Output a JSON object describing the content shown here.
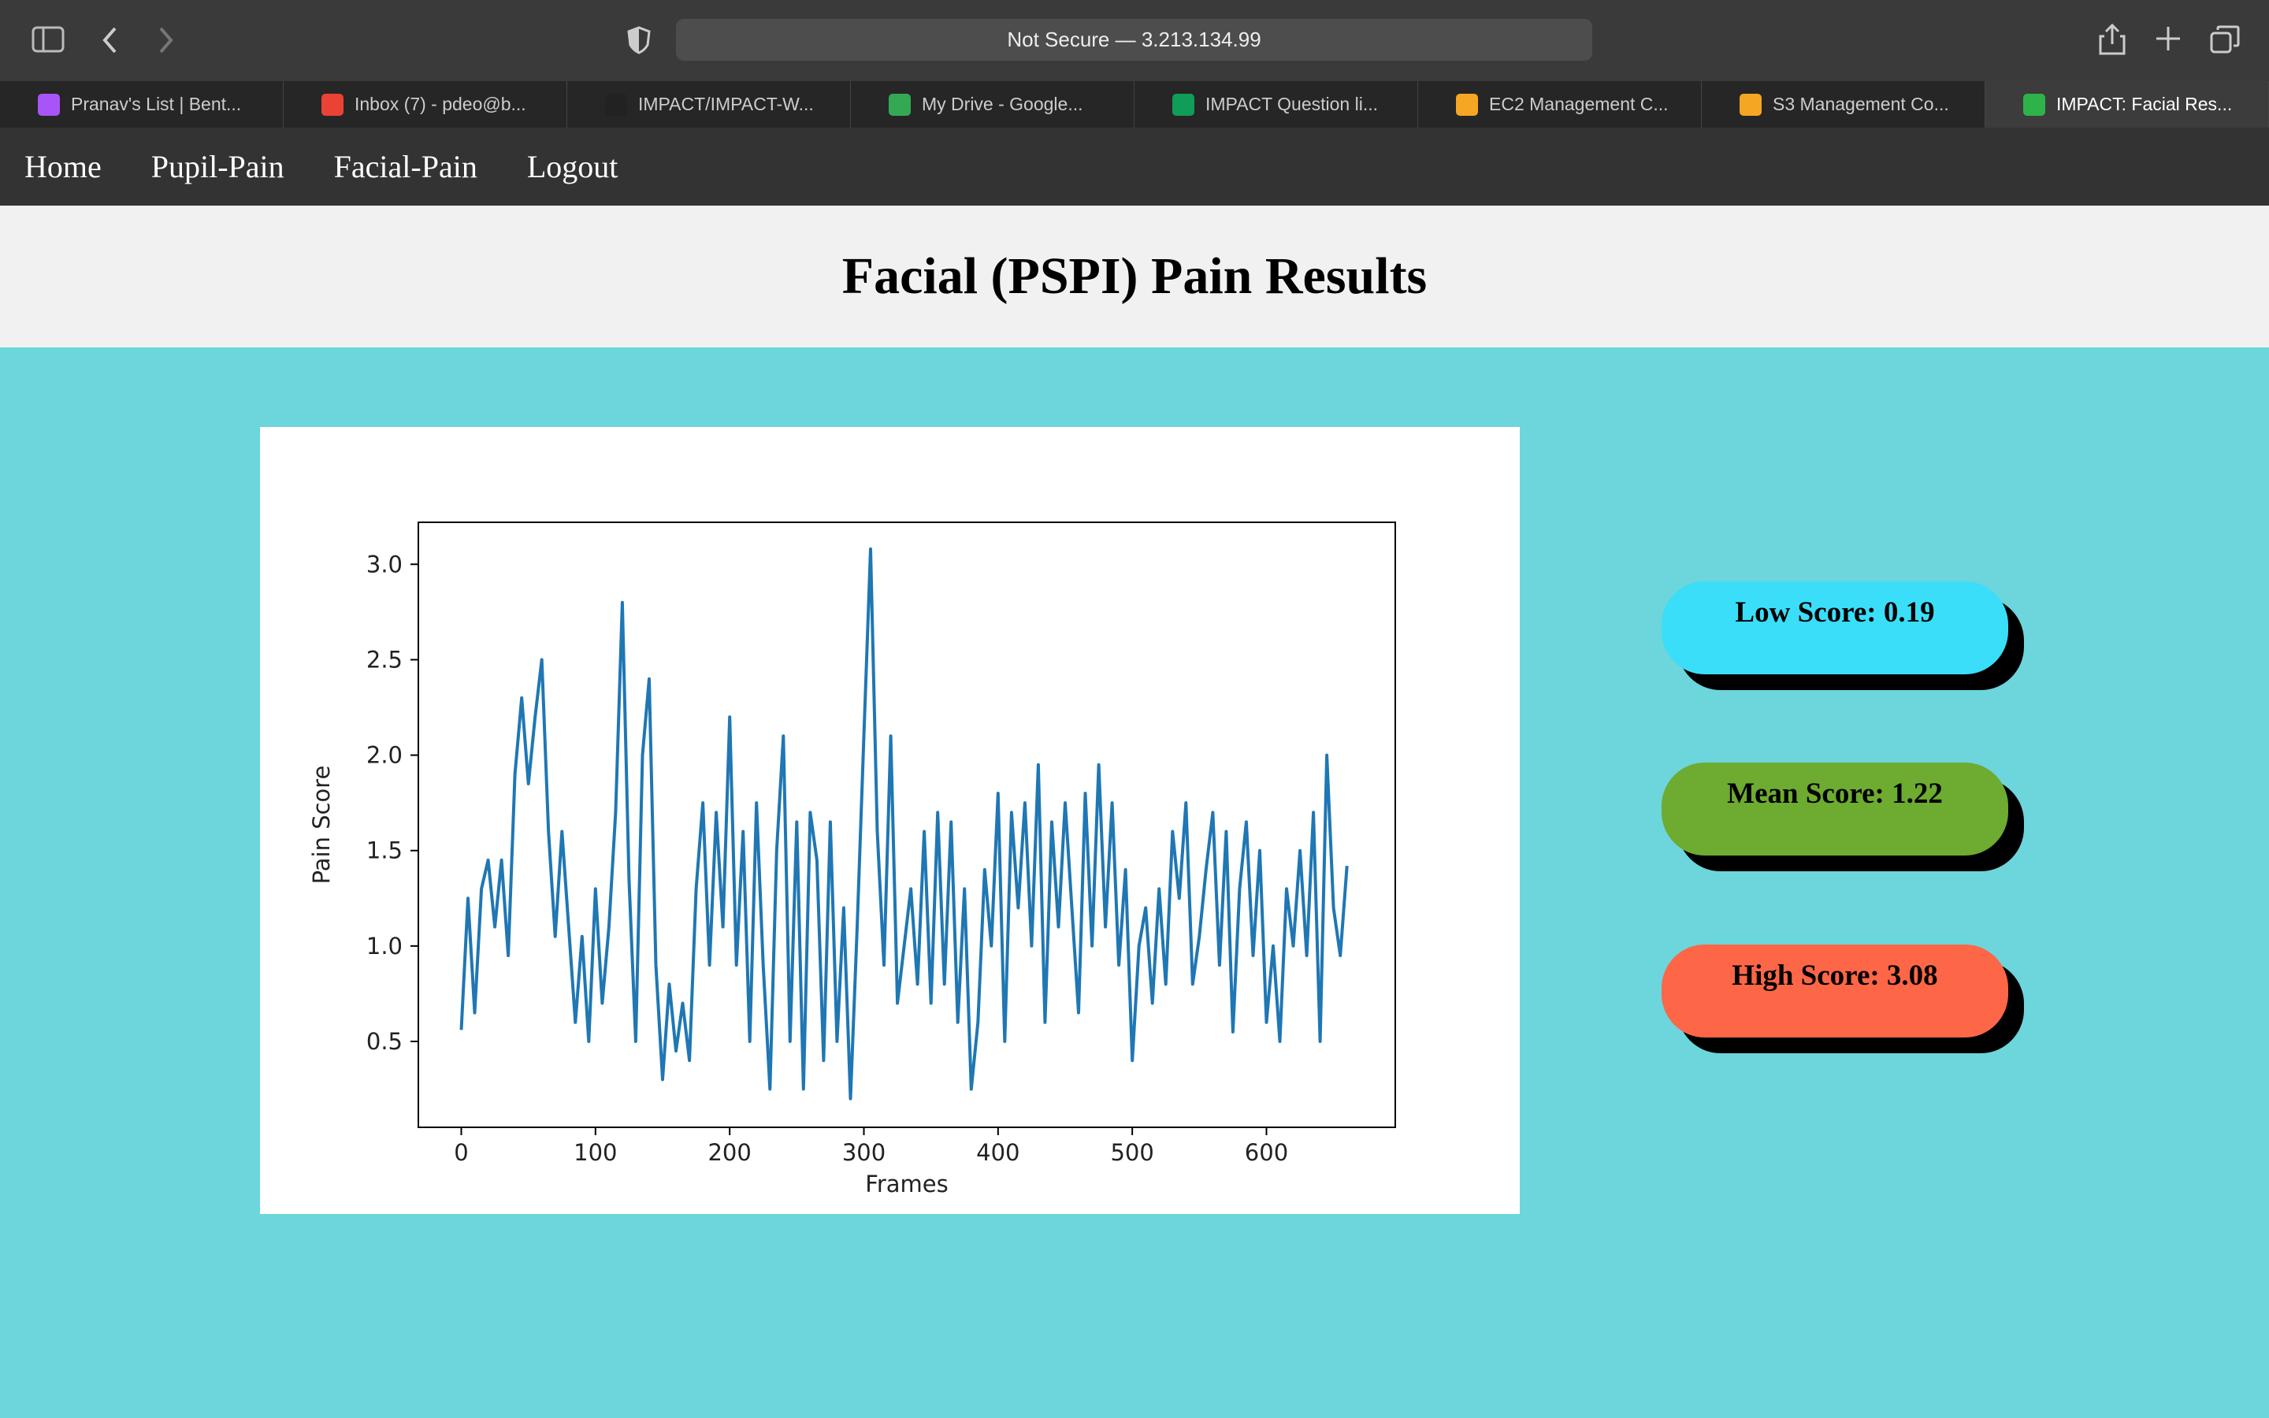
{
  "browser": {
    "url": "Not Secure — 3.213.134.99",
    "tabs": [
      "Pranav's List | Bent...",
      "Inbox (7) - pdeo@b...",
      "IMPACT/IMPACT-W...",
      "My Drive - Google...",
      "IMPACT Question li...",
      "EC2 Management C...",
      "S3 Management Co...",
      "IMPACT: Facial Res..."
    ]
  },
  "nav": [
    "Home",
    "Pupil-Pain",
    "Facial-Pain",
    "Logout"
  ],
  "header": {
    "title": "Facial (PSPI) Pain Results"
  },
  "scores": [
    "Low Score: 0.19",
    "Mean Score: 1.22",
    "High Score: 3.08"
  ],
  "chart_data": {
    "type": "line",
    "x_label": "Frames",
    "y_label": "Pain Score",
    "color": "#1f77b4",
    "grid": false,
    "x": [
      0,
      5,
      10,
      15,
      20,
      25,
      30,
      35,
      40,
      45,
      50,
      55,
      60,
      65,
      70,
      75,
      80,
      85,
      90,
      95,
      100,
      105,
      110,
      115,
      120,
      125,
      130,
      135,
      140,
      145,
      150,
      155,
      160,
      165,
      170,
      175,
      180,
      185,
      190,
      195,
      200,
      205,
      210,
      215,
      220,
      225,
      230,
      235,
      240,
      245,
      250,
      255,
      260,
      265,
      270,
      275,
      280,
      285,
      290,
      295,
      300,
      305,
      310,
      315,
      320,
      325,
      330,
      335,
      340,
      345,
      350,
      355,
      360,
      365,
      370,
      375,
      380,
      385,
      390,
      395,
      400,
      405,
      410,
      415,
      420,
      425,
      430,
      435,
      440,
      445,
      450,
      455,
      460,
      465,
      470,
      475,
      480,
      485,
      490,
      495,
      500,
      505,
      510,
      515,
      520,
      525,
      530,
      535,
      540,
      545,
      550,
      555,
      560,
      565,
      570,
      575,
      580,
      585,
      590,
      595,
      600,
      605,
      610,
      615,
      620,
      625,
      630,
      635,
      640,
      645,
      650,
      655,
      660
    ],
    "values": [
      0.56,
      1.25,
      0.65,
      1.3,
      1.45,
      1.1,
      1.45,
      0.95,
      1.9,
      2.3,
      1.85,
      2.2,
      2.5,
      1.6,
      1.05,
      1.6,
      1.1,
      0.6,
      1.05,
      0.5,
      1.3,
      0.7,
      1.1,
      1.7,
      2.8,
      1.35,
      0.5,
      2.0,
      2.4,
      0.9,
      0.3,
      0.8,
      0.45,
      0.7,
      0.4,
      1.3,
      1.75,
      0.9,
      1.7,
      1.1,
      2.2,
      0.9,
      1.6,
      0.5,
      1.75,
      0.9,
      0.25,
      1.5,
      2.1,
      0.5,
      1.65,
      0.25,
      1.7,
      1.45,
      0.4,
      1.65,
      0.5,
      1.2,
      0.2,
      1.1,
      2.1,
      3.08,
      1.6,
      0.9,
      2.1,
      0.7,
      1.0,
      1.3,
      0.8,
      1.6,
      0.7,
      1.7,
      0.8,
      1.65,
      0.6,
      1.3,
      0.25,
      0.6,
      1.4,
      1.0,
      1.8,
      0.5,
      1.7,
      1.2,
      1.75,
      1.0,
      1.95,
      0.6,
      1.65,
      1.1,
      1.75,
      1.2,
      0.65,
      1.8,
      1.0,
      1.95,
      1.1,
      1.75,
      0.9,
      1.4,
      0.4,
      1.0,
      1.2,
      0.7,
      1.3,
      0.8,
      1.6,
      1.25,
      1.75,
      0.8,
      1.05,
      1.4,
      1.7,
      0.9,
      1.6,
      0.55,
      1.3,
      1.65,
      0.95,
      1.5,
      0.6,
      1.0,
      0.5,
      1.3,
      1.0,
      1.5,
      0.95,
      1.7,
      0.5,
      2.0,
      1.2,
      0.95,
      1.42
    ],
    "xlim": [
      -32,
      696
    ],
    "ylim": [
      0.05,
      3.22
    ],
    "xticks": [
      0,
      100,
      200,
      300,
      400,
      500,
      600
    ],
    "yticks": [
      0.5,
      {
        "value": 1,
        "label": "1.0"
      },
      1.5,
      {
        "value": 2,
        "label": "2.0"
      },
      2.5,
      {
        "value": 3,
        "label": "3.0"
      }
    ]
  }
}
